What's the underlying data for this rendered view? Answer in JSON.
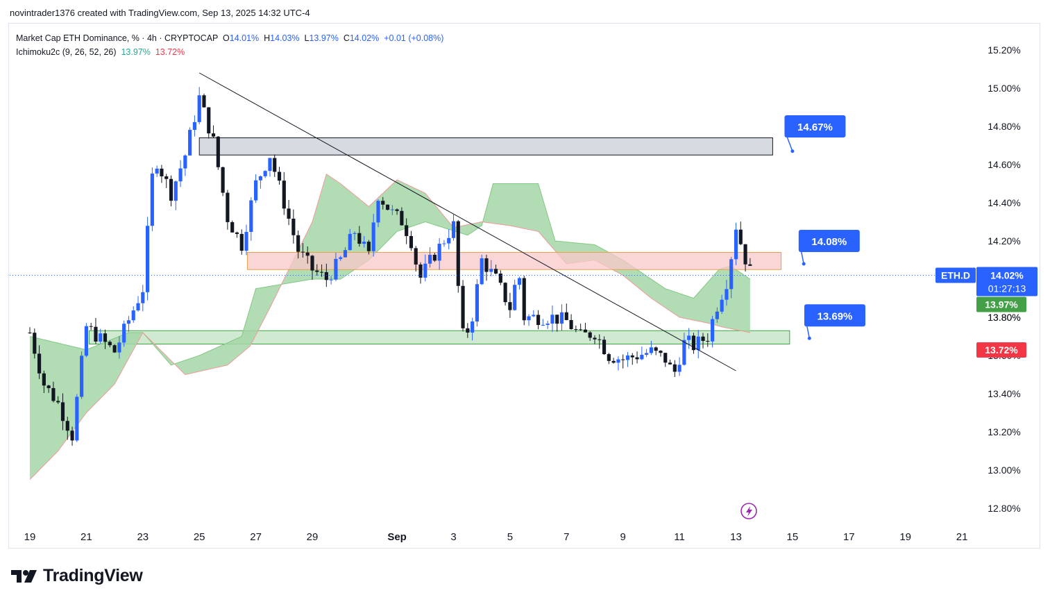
{
  "header": {
    "caption": "novintrader1376 created with TradingView.com, Sep 13, 2025 14:32 UTC-4"
  },
  "legend": {
    "symbol": "Market Cap ETH Dominance, % · 4h · CRYPTOCAP",
    "o_label": "O",
    "o_value": "14.01%",
    "h_label": "H",
    "h_value": "14.03%",
    "l_label": "L",
    "l_value": "13.97%",
    "c_label": "C",
    "c_value": "14.02%",
    "change": "+0.01 (+0.08%)",
    "indicator": "Ichimoku2c (9, 26, 52, 26)",
    "ind_value_1": "13.97%",
    "ind_value_2": "13.72%"
  },
  "brand": {
    "name": "TradingView"
  },
  "colors": {
    "up": "#2962ff",
    "down": "#131722",
    "cloud": "#a5d6a7",
    "cloud_edge": "#ef9a9a",
    "resistance": "#b2b5be",
    "supply": "#f8c8c8",
    "demand": "#c8e6c9",
    "callout": "#2962ff"
  },
  "chart_data": {
    "type": "candlestick",
    "symbol": "ETH.D",
    "timeframe": "4h",
    "y_unit": "%",
    "ylim": [
      12.7,
      15.28
    ],
    "y_ticks": [
      12.8,
      13.0,
      13.2,
      13.4,
      13.6,
      13.8,
      14.0,
      14.2,
      14.4,
      14.6,
      14.8,
      15.0,
      15.2
    ],
    "y_tick_labels": [
      "12.80%",
      "13.00%",
      "13.20%",
      "13.40%",
      "13.60%",
      "13.80%",
      "",
      "14.20%",
      "14.40%",
      "14.60%",
      "14.80%",
      "15.00%",
      "15.20%"
    ],
    "x_ticks": [
      {
        "day": 0,
        "label": "19"
      },
      {
        "day": 2,
        "label": "21"
      },
      {
        "day": 4,
        "label": "23"
      },
      {
        "day": 6,
        "label": "25"
      },
      {
        "day": 8,
        "label": "27"
      },
      {
        "day": 10,
        "label": "29"
      },
      {
        "day": 13,
        "label": "Sep"
      },
      {
        "day": 15,
        "label": "3"
      },
      {
        "day": 17,
        "label": "5"
      },
      {
        "day": 19,
        "label": "7"
      },
      {
        "day": 21,
        "label": "9"
      },
      {
        "day": 23,
        "label": "11"
      },
      {
        "day": 25,
        "label": "13"
      },
      {
        "day": 27,
        "label": "15"
      },
      {
        "day": 29,
        "label": "17"
      },
      {
        "day": 31,
        "label": "19"
      },
      {
        "day": 33,
        "label": "21"
      }
    ],
    "last_price": {
      "value": 14.02,
      "label": "14.02%",
      "countdown": "01:27:13",
      "tag": "ETH.D"
    },
    "ind_badges": [
      {
        "value": 13.97,
        "label": "13.97%"
      },
      {
        "value": 13.72,
        "label": "13.72%"
      }
    ],
    "anchors": [
      [
        0,
        13.72
      ],
      [
        0.5,
        13.45
      ],
      [
        1.0,
        13.35
      ],
      [
        1.5,
        13.18
      ],
      [
        2.0,
        13.75
      ],
      [
        3.0,
        13.62
      ],
      [
        4.0,
        13.95
      ],
      [
        4.4,
        14.65
      ],
      [
        5.0,
        14.45
      ],
      [
        5.5,
        14.65
      ],
      [
        6.0,
        14.95
      ],
      [
        6.5,
        14.72
      ],
      [
        7.0,
        14.32
      ],
      [
        7.5,
        14.18
      ],
      [
        8.0,
        14.5
      ],
      [
        8.5,
        14.65
      ],
      [
        9.0,
        14.4
      ],
      [
        9.5,
        14.15
      ],
      [
        10.0,
        14.05
      ],
      [
        10.5,
        14.0
      ],
      [
        11.0,
        14.1
      ],
      [
        11.5,
        14.25
      ],
      [
        12.0,
        14.12
      ],
      [
        12.3,
        14.45
      ],
      [
        12.8,
        14.35
      ],
      [
        13.2,
        14.3
      ],
      [
        13.5,
        14.2
      ],
      [
        13.8,
        14.0
      ],
      [
        14.2,
        14.1
      ],
      [
        15.0,
        14.28
      ],
      [
        15.3,
        13.7
      ],
      [
        15.6,
        13.75
      ],
      [
        16.0,
        14.1
      ],
      [
        16.5,
        14.0
      ],
      [
        17.0,
        13.85
      ],
      [
        17.3,
        14.05
      ],
      [
        17.5,
        13.8
      ],
      [
        18.5,
        13.8
      ],
      [
        19.0,
        13.78
      ],
      [
        19.5,
        13.7
      ],
      [
        20.0,
        13.72
      ],
      [
        20.5,
        13.6
      ],
      [
        21.0,
        13.58
      ],
      [
        22.0,
        13.62
      ],
      [
        22.5,
        13.58
      ],
      [
        22.8,
        13.5
      ],
      [
        23.2,
        13.68
      ],
      [
        23.5,
        13.65
      ],
      [
        24.0,
        13.7
      ],
      [
        24.3,
        13.85
      ],
      [
        24.7,
        14.0
      ],
      [
        25.0,
        14.28
      ],
      [
        25.3,
        14.12
      ],
      [
        25.6,
        14.0
      ]
    ],
    "cloud_lead_a": [
      [
        0,
        13.7
      ],
      [
        2,
        13.63
      ],
      [
        3.5,
        13.72
      ],
      [
        4.0,
        13.72
      ],
      [
        5.0,
        13.55
      ],
      [
        6.0,
        13.6
      ],
      [
        7.5,
        13.7
      ],
      [
        8.0,
        13.95
      ],
      [
        10.0,
        14.0
      ],
      [
        11.0,
        14.0
      ],
      [
        12.0,
        14.1
      ],
      [
        13.0,
        14.25
      ],
      [
        14.0,
        14.3
      ],
      [
        15.5,
        14.23
      ],
      [
        16.0,
        14.28
      ],
      [
        16.4,
        14.5
      ],
      [
        18.0,
        14.5
      ],
      [
        18.6,
        14.2
      ],
      [
        20.0,
        14.18
      ],
      [
        21.0,
        14.1
      ],
      [
        21.5,
        14.05
      ],
      [
        22.5,
        13.95
      ],
      [
        23.5,
        13.9
      ],
      [
        24.4,
        14.05
      ],
      [
        24.8,
        14.07
      ],
      [
        25.5,
        14.0
      ]
    ],
    "cloud_lead_b": [
      [
        0,
        12.95
      ],
      [
        1,
        13.1
      ],
      [
        2,
        13.3
      ],
      [
        3,
        13.45
      ],
      [
        4,
        13.72
      ],
      [
        5.5,
        13.5
      ],
      [
        7.0,
        13.55
      ],
      [
        7.8,
        13.65
      ],
      [
        8.5,
        13.85
      ],
      [
        10.0,
        14.3
      ],
      [
        10.5,
        14.55
      ],
      [
        11.0,
        14.5
      ],
      [
        12.0,
        14.38
      ],
      [
        13.0,
        14.52
      ],
      [
        14.0,
        14.45
      ],
      [
        15.0,
        14.27
      ],
      [
        16.0,
        14.3
      ],
      [
        17.0,
        14.28
      ],
      [
        18.0,
        14.25
      ],
      [
        19.0,
        14.08
      ],
      [
        20.0,
        14.1
      ],
      [
        21.0,
        14.02
      ],
      [
        22.0,
        13.9
      ],
      [
        23.0,
        13.8
      ],
      [
        24.0,
        13.77
      ],
      [
        24.5,
        13.75
      ],
      [
        25.5,
        13.72
      ]
    ],
    "zones": [
      {
        "name": "resistance",
        "from_day": 6.0,
        "to_day": 26.3,
        "low": 14.65,
        "high": 14.74
      },
      {
        "name": "supply",
        "from_day": 7.7,
        "to_day": 26.6,
        "low": 14.05,
        "high": 14.14
      },
      {
        "name": "demand",
        "from_day": 2.1,
        "to_day": 26.9,
        "low": 13.66,
        "high": 13.73
      }
    ],
    "trendline": {
      "from": [
        6.0,
        15.08
      ],
      "to": [
        25.0,
        13.52
      ]
    },
    "callouts": [
      {
        "label": "14.67%",
        "value": 14.67,
        "day": 27.0,
        "label_day": 27.8,
        "label_value": 14.8
      },
      {
        "label": "14.08%",
        "value": 14.08,
        "day": 27.4,
        "label_day": 28.3,
        "label_value": 14.2
      },
      {
        "label": "13.69%",
        "value": 13.69,
        "day": 27.6,
        "label_day": 28.5,
        "label_value": 13.81
      }
    ]
  }
}
